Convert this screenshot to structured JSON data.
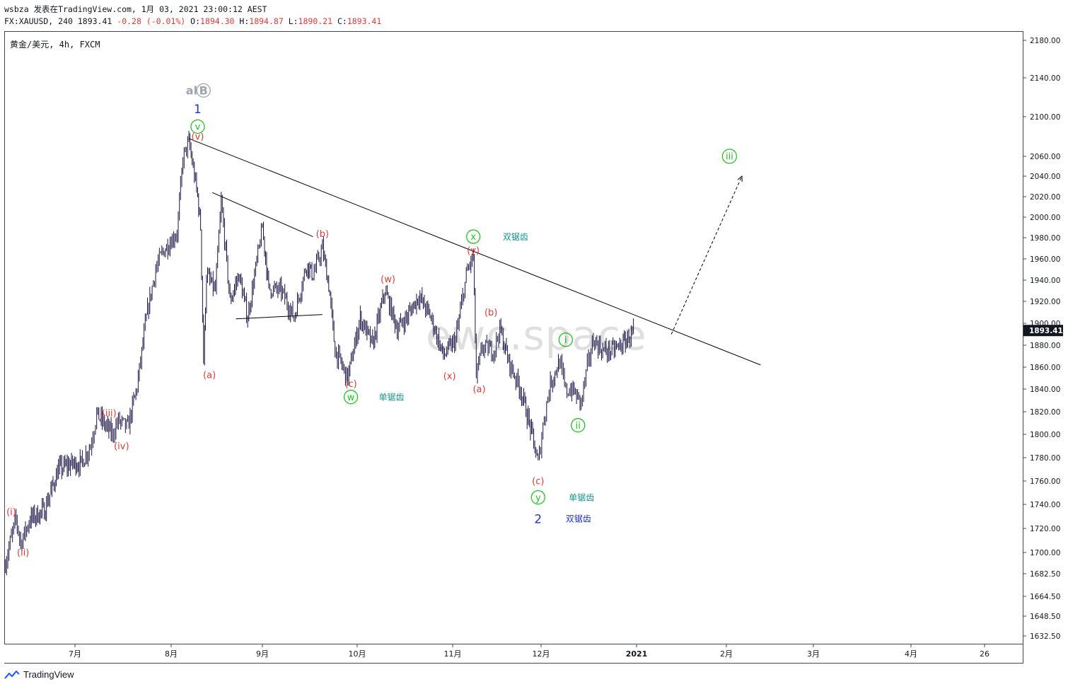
{
  "header": {
    "user": "wsbza",
    "published": "发表在TradingView.com, 1月 03, 2021 23:00:12 AEST",
    "ticker_prefix": "FX:XAUUSD, 240",
    "last": "1893.41",
    "change": "-0.28 (-0.01%)",
    "open_label": "O:",
    "open": "1894.30",
    "high_label": "H:",
    "high": "1894.87",
    "low_label": "L:",
    "low": "1890.21",
    "close_label": "C:",
    "close": "1893.41"
  },
  "symbol_title": "黄金/美元, 4h, FXCM",
  "watermark": "ewc.space",
  "footer": {
    "brand": "TradingView"
  },
  "colors": {
    "candle": "#1a1446",
    "wave_red": "#e53935",
    "wave_green": "#21c521",
    "wave_blue": "#2034c8",
    "note_teal": "#14968c",
    "alt_gray": "#a0a4ad",
    "price_tag": "#131722"
  },
  "chart_data": {
    "type": "line",
    "symbol": "FX:XAUUSD",
    "interval": "4h",
    "ylim": [
      1620,
      2190
    ],
    "y_ticks": [
      "2180.00",
      "2140.00",
      "2100.00",
      "2060.00",
      "2040.00",
      "2020.00",
      "2000.00",
      "1980.00",
      "1960.00",
      "1940.00",
      "1920.00",
      "1900.00",
      "1880.00",
      "1860.00",
      "1840.00",
      "1820.00",
      "1800.00",
      "1780.00",
      "1760.00",
      "1740.00",
      "1720.00",
      "1700.00",
      "1682.50",
      "1664.50",
      "1648.50",
      "1632.50"
    ],
    "x_ticks": [
      "7月",
      "8月",
      "9月",
      "10月",
      "11月",
      "12月",
      "2021",
      "2月",
      "3月",
      "4月",
      "26"
    ],
    "last_price_tag": "1893.41",
    "price_path": [
      {
        "date": "2020-06-01",
        "price": 1688
      },
      {
        "date": "2020-06-04",
        "price": 1712
      },
      {
        "date": "2020-06-06",
        "price": 1728
      },
      {
        "date": "2020-06-08",
        "price": 1708
      },
      {
        "date": "2020-06-12",
        "price": 1728
      },
      {
        "date": "2020-06-18",
        "price": 1735
      },
      {
        "date": "2020-06-24",
        "price": 1770
      },
      {
        "date": "2020-06-30",
        "price": 1775
      },
      {
        "date": "2020-07-03",
        "price": 1775
      },
      {
        "date": "2020-07-06",
        "price": 1790
      },
      {
        "date": "2020-07-08",
        "price": 1818
      },
      {
        "date": "2020-07-13",
        "price": 1800
      },
      {
        "date": "2020-07-15",
        "price": 1812
      },
      {
        "date": "2020-07-18",
        "price": 1806
      },
      {
        "date": "2020-07-21",
        "price": 1842
      },
      {
        "date": "2020-07-24",
        "price": 1905
      },
      {
        "date": "2020-07-27",
        "price": 1950
      },
      {
        "date": "2020-07-29",
        "price": 1965
      },
      {
        "date": "2020-08-03",
        "price": 1985
      },
      {
        "date": "2020-08-05",
        "price": 2058
      },
      {
        "date": "2020-08-07",
        "price": 2075
      },
      {
        "date": "2020-08-10",
        "price": 2020
      },
      {
        "date": "2020-08-11",
        "price": 1990
      },
      {
        "date": "2020-08-12",
        "price": 1865
      },
      {
        "date": "2020-08-13",
        "price": 1945
      },
      {
        "date": "2020-08-16",
        "price": 1930
      },
      {
        "date": "2020-08-18",
        "price": 2015
      },
      {
        "date": "2020-08-21",
        "price": 1920
      },
      {
        "date": "2020-08-24",
        "price": 1945
      },
      {
        "date": "2020-08-27",
        "price": 1905
      },
      {
        "date": "2020-09-01",
        "price": 1990
      },
      {
        "date": "2020-09-03",
        "price": 1932
      },
      {
        "date": "2020-09-07",
        "price": 1930
      },
      {
        "date": "2020-09-11",
        "price": 1905
      },
      {
        "date": "2020-09-15",
        "price": 1955
      },
      {
        "date": "2020-09-17",
        "price": 1945
      },
      {
        "date": "2020-09-20",
        "price": 1970
      },
      {
        "date": "2020-09-22",
        "price": 1935
      },
      {
        "date": "2020-09-24",
        "price": 1875
      },
      {
        "date": "2020-09-28",
        "price": 1850
      },
      {
        "date": "2020-10-02",
        "price": 1905
      },
      {
        "date": "2020-10-06",
        "price": 1880
      },
      {
        "date": "2020-10-10",
        "price": 1930
      },
      {
        "date": "2020-10-14",
        "price": 1895
      },
      {
        "date": "2020-10-17",
        "price": 1905
      },
      {
        "date": "2020-10-21",
        "price": 1925
      },
      {
        "date": "2020-10-25",
        "price": 1905
      },
      {
        "date": "2020-10-29",
        "price": 1870
      },
      {
        "date": "2020-11-02",
        "price": 1885
      },
      {
        "date": "2020-11-06",
        "price": 1950
      },
      {
        "date": "2020-11-08",
        "price": 1962
      },
      {
        "date": "2020-11-09",
        "price": 1850
      },
      {
        "date": "2020-11-11",
        "price": 1878
      },
      {
        "date": "2020-11-15",
        "price": 1875
      },
      {
        "date": "2020-11-17",
        "price": 1895
      },
      {
        "date": "2020-11-20",
        "price": 1865
      },
      {
        "date": "2020-11-24",
        "price": 1840
      },
      {
        "date": "2020-11-27",
        "price": 1810
      },
      {
        "date": "2020-11-30",
        "price": 1775
      },
      {
        "date": "2020-12-02",
        "price": 1815
      },
      {
        "date": "2020-12-04",
        "price": 1845
      },
      {
        "date": "2020-12-07",
        "price": 1865
      },
      {
        "date": "2020-12-09",
        "price": 1838
      },
      {
        "date": "2020-12-11",
        "price": 1840
      },
      {
        "date": "2020-12-14",
        "price": 1828
      },
      {
        "date": "2020-12-16",
        "price": 1860
      },
      {
        "date": "2020-12-18",
        "price": 1885
      },
      {
        "date": "2020-12-21",
        "price": 1875
      },
      {
        "date": "2020-12-24",
        "price": 1875
      },
      {
        "date": "2020-12-28",
        "price": 1882
      },
      {
        "date": "2020-12-31",
        "price": 1893
      }
    ],
    "trendlines": [
      {
        "from": {
          "date": "2020-08-07",
          "price": 2078
        },
        "to": {
          "date": "2021-02-12",
          "price": 1862
        }
      },
      {
        "from": {
          "date": "2020-08-15",
          "price": 2024
        },
        "to": {
          "date": "2020-09-17",
          "price": 1981
        }
      },
      {
        "from": {
          "date": "2020-08-23",
          "price": 1904
        },
        "to": {
          "date": "2020-09-20",
          "price": 1908
        }
      }
    ],
    "projection": {
      "from": {
        "date": "2021-01-13",
        "price": 1890
      },
      "to": {
        "date": "2021-02-06",
        "price": 2040
      }
    },
    "annotations": [
      {
        "text": "alt",
        "date": "2020-08-06",
        "price": 2127,
        "color": "#a0a4ad"
      },
      {
        "text": "B",
        "date": "2020-08-12",
        "price": 2127,
        "color": "#a0a4ad",
        "circle": true
      },
      {
        "text": "1",
        "date": "2020-08-10",
        "price": 2108,
        "color": "#2034c8"
      },
      {
        "text": "v",
        "date": "2020-08-10",
        "price": 2090,
        "color": "#21c521",
        "circle": true
      },
      {
        "text": "(v)",
        "date": "2020-08-10",
        "price": 2080,
        "color": "#e53935"
      },
      {
        "text": "(a)",
        "date": "2020-08-14",
        "price": 1853,
        "color": "#e53935"
      },
      {
        "text": "(b)",
        "date": "2020-09-20",
        "price": 1984,
        "color": "#e53935"
      },
      {
        "text": "(c)",
        "date": "2020-09-29",
        "price": 1845,
        "color": "#e53935"
      },
      {
        "text": "w",
        "date": "2020-09-29",
        "price": 1833,
        "color": "#21c521",
        "circle": true
      },
      {
        "text": "单锯齿",
        "date": "2020-10-08",
        "price": 1833,
        "color": "#14968c"
      },
      {
        "text": "(w)",
        "date": "2020-10-11",
        "price": 1941,
        "color": "#e53935"
      },
      {
        "text": "(x)",
        "date": "2020-10-31",
        "price": 1852,
        "color": "#e53935"
      },
      {
        "text": "x",
        "date": "2020-11-08",
        "price": 1981,
        "color": "#21c521",
        "circle": true
      },
      {
        "text": "双锯齿",
        "date": "2020-11-18",
        "price": 1981,
        "color": "#14968c"
      },
      {
        "text": "(y)",
        "date": "2020-11-08",
        "price": 1968,
        "color": "#e53935"
      },
      {
        "text": "(a)",
        "date": "2020-11-10",
        "price": 1840,
        "color": "#e53935"
      },
      {
        "text": "(b)",
        "date": "2020-11-14",
        "price": 1910,
        "color": "#e53935"
      },
      {
        "text": "(c)",
        "date": "2020-11-30",
        "price": 1760,
        "color": "#e53935"
      },
      {
        "text": "y",
        "date": "2020-11-30",
        "price": 1746,
        "color": "#21c521",
        "circle": true
      },
      {
        "text": "单锯齿",
        "date": "2020-12-10",
        "price": 1746,
        "color": "#14968c"
      },
      {
        "text": "2",
        "date": "2020-11-30",
        "price": 1728,
        "color": "#2034c8"
      },
      {
        "text": "双锯齿",
        "date": "2020-12-09",
        "price": 1728,
        "color": "#2034c8"
      },
      {
        "text": "i",
        "date": "2020-12-09",
        "price": 1885,
        "color": "#21c521",
        "circle": true
      },
      {
        "text": "ii",
        "date": "2020-12-13",
        "price": 1808,
        "color": "#21c521",
        "circle": true
      },
      {
        "text": "iii",
        "date": "2021-02-02",
        "price": 2060,
        "color": "#21c521",
        "circle": true
      },
      {
        "text": "(i)",
        "date": "2020-06-04",
        "price": 1734,
        "color": "#e53935"
      },
      {
        "text": "(ii)",
        "date": "2020-06-09",
        "price": 1700,
        "color": "#e53935"
      },
      {
        "text": "(iii)",
        "date": "2020-07-12",
        "price": 1819,
        "color": "#e53935"
      },
      {
        "text": "(iv)",
        "date": "2020-07-16",
        "price": 1790,
        "color": "#e53935"
      }
    ]
  }
}
